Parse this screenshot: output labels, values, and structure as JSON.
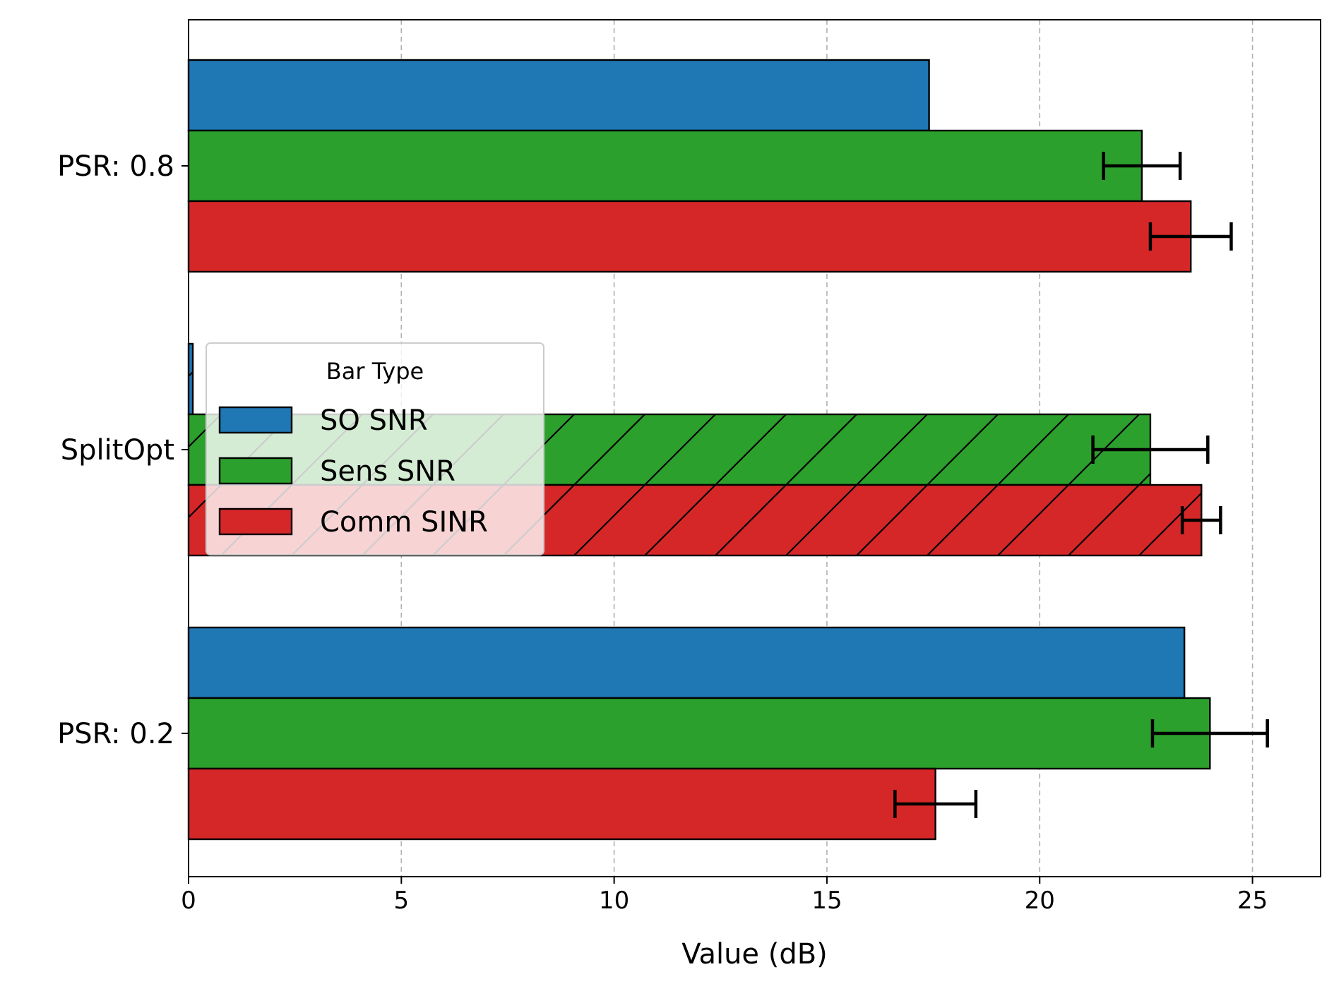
{
  "chart_data": {
    "type": "bar",
    "orientation": "horizontal",
    "categories": [
      "PSR: 0.8",
      "SplitOpt",
      "PSR: 0.2"
    ],
    "series": [
      {
        "name": "SO SNR",
        "color": "#1f77b4",
        "values": [
          17.4,
          0.1,
          23.4
        ],
        "errors": [
          null,
          null,
          null
        ]
      },
      {
        "name": "Sens SNR",
        "color": "#2ca02c",
        "values": [
          22.4,
          22.6,
          24.0
        ],
        "errors": [
          0.9,
          1.35,
          1.35
        ]
      },
      {
        "name": "Comm SINR",
        "color": "#d62728",
        "values": [
          23.55,
          23.8,
          17.55
        ],
        "errors": [
          0.95,
          0.45,
          0.95
        ]
      }
    ],
    "hatched_category": "SplitOpt",
    "xlabel": "Value (dB)",
    "ylabel": "",
    "xlim": [
      0,
      26.6
    ],
    "xticks": [
      0,
      5,
      10,
      15,
      20,
      25
    ],
    "grid": "x-dashed",
    "legend": {
      "title": "Bar Type",
      "placement": "center-left"
    }
  }
}
